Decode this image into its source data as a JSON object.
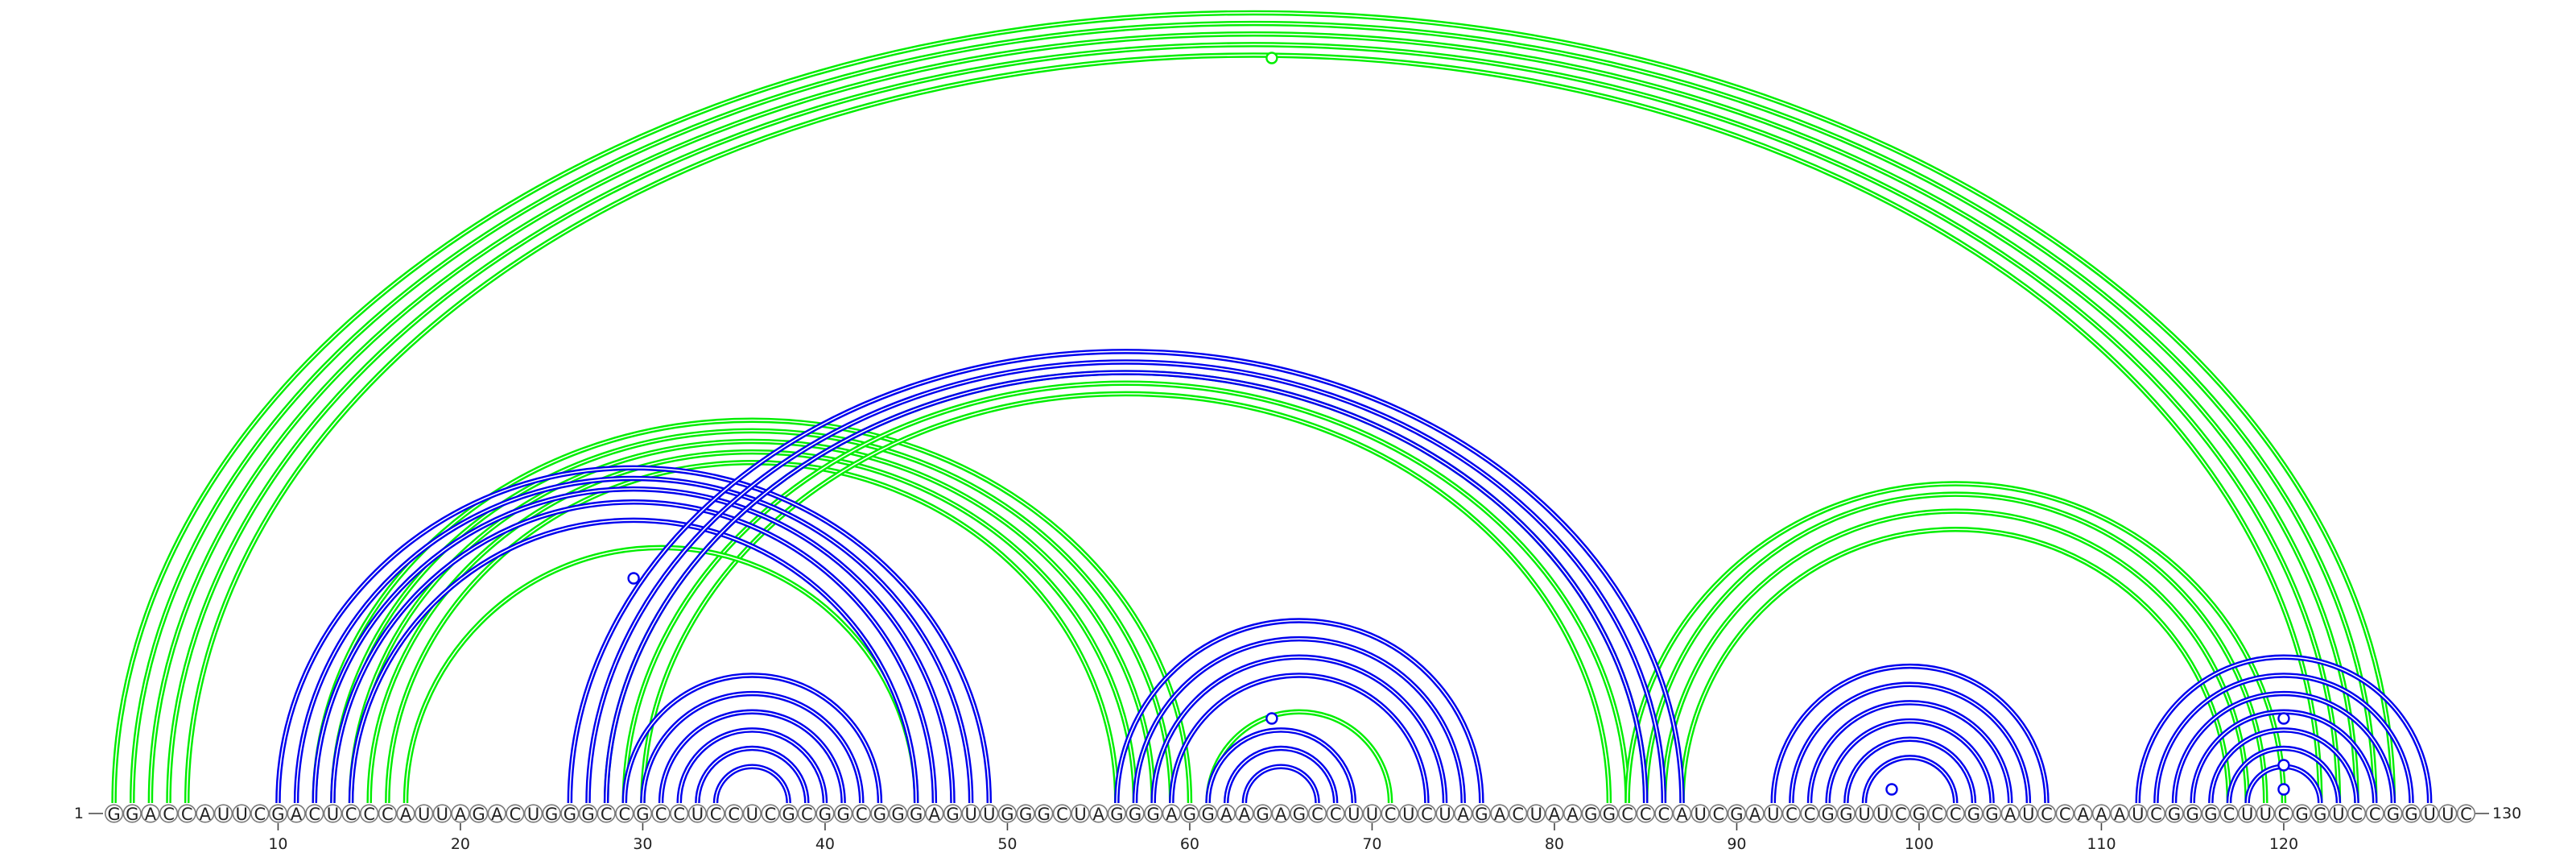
{
  "sequence": "GGACCAUUCGACUCCCAUUAGACUGGGCCGCCUCCUCGCGGCGGGAGUUGGGCUAGGGAGGAAGAGCCUUCUCUAGACUAAGGCCCAUCGAUCCGGUUCGCCGGAUCCAAAUCGGGCUUCGGUCCGGUUC",
  "length": 130,
  "start_label": "1",
  "end_label": "130",
  "tick_labels": [
    "10",
    "20",
    "30",
    "40",
    "50",
    "60",
    "70",
    "80",
    "90",
    "100",
    "110",
    "120"
  ],
  "colors": {
    "green": "#00ee00",
    "blue": "#0000ee"
  },
  "helices": [
    {
      "color": "green",
      "pairs": [
        [
          1,
          126
        ],
        [
          2,
          125
        ],
        [
          3,
          124
        ],
        [
          4,
          123
        ],
        [
          5,
          122
        ]
      ]
    },
    {
      "color": "green",
      "pairs": [
        [
          12,
          60
        ],
        [
          13,
          59
        ],
        [
          14,
          58
        ],
        [
          15,
          57
        ],
        [
          16,
          56
        ]
      ]
    },
    {
      "color": "green",
      "pairs": [
        [
          28,
          85
        ],
        [
          29,
          84
        ],
        [
          30,
          83
        ]
      ]
    },
    {
      "color": "green",
      "pairs": [
        [
          84,
          120
        ],
        [
          85,
          119
        ],
        [
          86,
          118
        ],
        [
          87,
          117
        ]
      ]
    },
    {
      "color": "green",
      "pairs": [
        [
          17,
          45
        ]
      ]
    },
    {
      "color": "green",
      "pairs": [
        [
          61,
          71
        ]
      ]
    },
    {
      "color": "blue",
      "pairs": [
        [
          10,
          49
        ],
        [
          11,
          48
        ],
        [
          12,
          47
        ],
        [
          13,
          46
        ],
        [
          14,
          45
        ]
      ]
    },
    {
      "color": "blue",
      "pairs": [
        [
          26,
          87
        ],
        [
          27,
          86
        ],
        [
          28,
          85
        ]
      ]
    },
    {
      "color": "blue",
      "pairs": [
        [
          29,
          43
        ],
        [
          30,
          42
        ],
        [
          31,
          41
        ],
        [
          32,
          40
        ],
        [
          33,
          39
        ],
        [
          34,
          38
        ]
      ]
    },
    {
      "color": "blue",
      "pairs": [
        [
          56,
          76
        ],
        [
          57,
          75
        ],
        [
          58,
          74
        ],
        [
          59,
          73
        ]
      ]
    },
    {
      "color": "blue",
      "pairs": [
        [
          61,
          69
        ],
        [
          62,
          68
        ],
        [
          63,
          67
        ]
      ]
    },
    {
      "color": "blue",
      "pairs": [
        [
          92,
          107
        ],
        [
          93,
          106
        ],
        [
          94,
          105
        ],
        [
          95,
          104
        ],
        [
          96,
          103
        ],
        [
          97,
          102
        ]
      ]
    },
    {
      "color": "blue",
      "pairs": [
        [
          112,
          128
        ],
        [
          113,
          127
        ],
        [
          114,
          126
        ],
        [
          115,
          125
        ],
        [
          116,
          124
        ]
      ]
    },
    {
      "color": "blue",
      "pairs": [
        [
          117,
          123
        ],
        [
          118,
          122
        ]
      ]
    }
  ],
  "markers": [
    {
      "color": "green",
      "pos": 64.5,
      "level": "top"
    },
    {
      "color": "blue",
      "pos": 29.5,
      "level": "blue-mid"
    },
    {
      "color": "blue",
      "pos": 64.5,
      "level": "blue-low"
    },
    {
      "color": "blue",
      "pos": 98.5,
      "level": "blue-inner"
    },
    {
      "color": "blue",
      "pos": 120.0,
      "level": "blue-r1"
    },
    {
      "color": "blue",
      "pos": 120.0,
      "level": "blue-r2"
    },
    {
      "color": "blue",
      "pos": 120.0,
      "level": "blue-r3"
    }
  ]
}
